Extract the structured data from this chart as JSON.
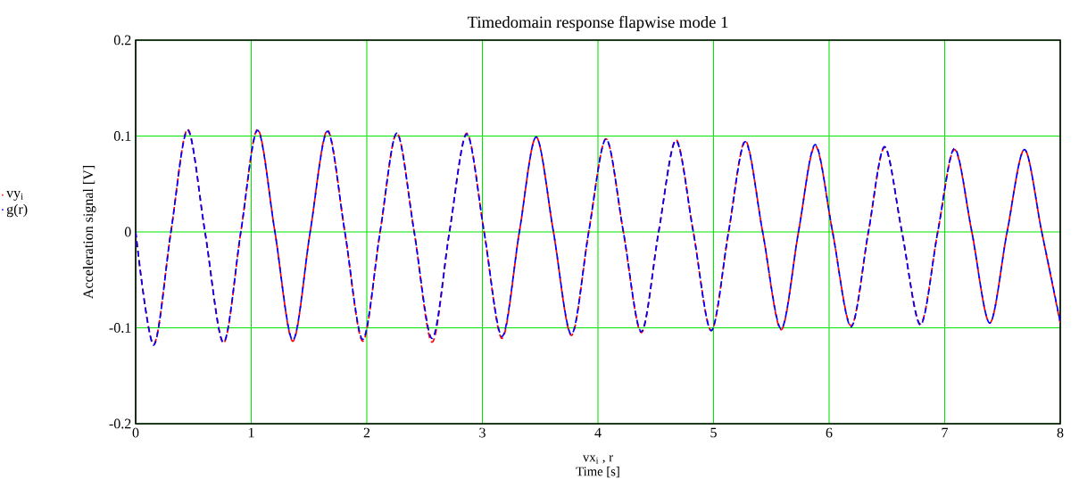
{
  "chart_data": {
    "type": "line",
    "title": "Timedomain response flapwise mode 1",
    "xlabel": "vx$_{i}$ , r",
    "ylabel": "Acceleration signal [V]",
    "annotations": [
      "Time [s]"
    ],
    "x": [
      0,
      0.155,
      0.305,
      0.45,
      0.6,
      0.76,
      0.91,
      1.055,
      1.205,
      1.36,
      1.51,
      1.66,
      1.81,
      1.965,
      2.115,
      2.26,
      2.41,
      2.565,
      2.715,
      2.865,
      3.015,
      3.17,
      3.32,
      3.465,
      3.615,
      3.77,
      3.92,
      4.07,
      4.22,
      4.375,
      4.525,
      4.675,
      4.825,
      4.98,
      5.13,
      5.275,
      5.425,
      5.585,
      5.735,
      5.88,
      6.03,
      6.19,
      6.34,
      6.48,
      6.63,
      6.79,
      6.94,
      7.085,
      7.235,
      7.39,
      7.54,
      7.69,
      7.84,
      8.0
    ],
    "series": [
      {
        "name": "vy$_{i}$",
        "color": "#ff0000",
        "values": [
          0,
          -0.117,
          0,
          0.107,
          0,
          -0.116,
          0,
          0.107,
          0,
          -0.114,
          0,
          0.106,
          0,
          -0.114,
          0,
          0.103,
          0,
          -0.115,
          0,
          0.103,
          0,
          -0.111,
          0,
          0.099,
          0,
          -0.108,
          0,
          0.097,
          0,
          -0.105,
          0,
          0.096,
          0,
          -0.103,
          0,
          0.095,
          0,
          -0.102,
          0,
          0.09,
          0,
          -0.098,
          0,
          0.088,
          0,
          -0.096,
          0,
          0.086,
          0,
          -0.095,
          0,
          0.086,
          0,
          -0.095
        ]
      },
      {
        "name": "g(r)",
        "color": "#0000ff",
        "values": [
          0,
          -0.118,
          0,
          0.106,
          0,
          -0.115,
          0,
          0.106,
          0,
          -0.113,
          0,
          0.105,
          0,
          -0.112,
          0,
          0.103,
          0,
          -0.111,
          0,
          0.102,
          0,
          -0.109,
          0,
          0.099,
          0,
          -0.107,
          0,
          0.097,
          0,
          -0.104,
          0,
          0.095,
          0,
          -0.103,
          0,
          0.094,
          0,
          -0.101,
          0,
          0.091,
          0,
          -0.099,
          0,
          0.089,
          0,
          -0.097,
          0,
          0.087,
          0,
          -0.095,
          0,
          0.086,
          0,
          -0.094
        ]
      }
    ],
    "xlim": [
      0,
      8
    ],
    "ylim": [
      -0.2,
      0.2
    ],
    "xticks": [
      0,
      1,
      2,
      3,
      4,
      5,
      6,
      7,
      8
    ],
    "yticks": [
      -0.2,
      -0.1,
      0,
      0.1,
      0.2
    ],
    "grid": true,
    "legend": "left",
    "line_style": "dashed",
    "marker": "none"
  }
}
